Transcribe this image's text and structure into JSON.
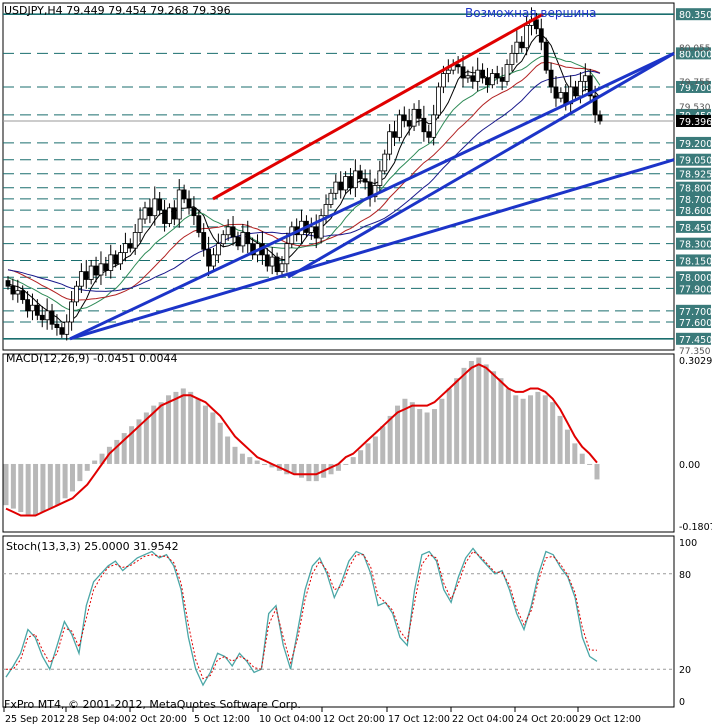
{
  "symbol_header": "USDJPY,H4  79.449 79.454 79.268 79.396",
  "annotation": "Возможная вершина",
  "copyright": "FxPro MT4, © 2001-2012, MetaQuotes Software Corp.",
  "colors": {
    "candle": "#000000",
    "grid": "#1a6e6e",
    "price_label_bg": "#3a7a7a",
    "trend_red": "#e00000",
    "trend_blue": "#1c34c8",
    "ma_fast": "#000000",
    "ma_medium": "#2e8b57",
    "ma_slow": "#b22222",
    "ma_long": "#1a1a8c",
    "macd_hist": "#b8b8b8",
    "macd_signal": "#e00000",
    "stoch_main": "#4aa6a6",
    "stoch_signal": "#e00000"
  },
  "chart_data": [
    {
      "type": "candlestick",
      "title": "USDJPY,H4",
      "ylim": [
        77.35,
        80.45
      ],
      "price_levels": [
        "80.350",
        "80.000",
        "79.700",
        "79.450",
        "79.200",
        "79.050",
        "78.925",
        "78.800",
        "78.700",
        "78.600",
        "78.450",
        "78.300",
        "78.150",
        "78.000",
        "77.900",
        "77.700",
        "77.600",
        "77.450"
      ],
      "price_level_values": [
        80.35,
        80.0,
        79.7,
        79.45,
        79.2,
        79.05,
        78.925,
        78.8,
        78.7,
        78.6,
        78.45,
        78.3,
        78.15,
        78.0,
        77.9,
        77.7,
        77.6,
        77.45
      ],
      "gray_ticks": [
        "80.055",
        "79.755",
        "79.530",
        "77.350"
      ],
      "gray_tick_values": [
        80.055,
        79.755,
        79.53,
        77.35
      ],
      "current_price": "79.396",
      "current_price_value": 79.396,
      "closes": [
        77.92,
        77.85,
        77.88,
        77.8,
        77.7,
        77.75,
        77.66,
        77.62,
        77.7,
        77.58,
        77.55,
        77.49,
        77.6,
        77.78,
        77.92,
        78.05,
        77.98,
        78.1,
        78.02,
        78.12,
        78.06,
        78.2,
        78.12,
        78.22,
        78.3,
        78.26,
        78.4,
        78.52,
        78.62,
        78.55,
        78.7,
        78.6,
        78.48,
        78.62,
        78.52,
        78.78,
        78.7,
        78.62,
        78.55,
        78.4,
        78.25,
        78.1,
        78.2,
        78.3,
        78.38,
        78.45,
        78.36,
        78.28,
        78.4,
        78.3,
        78.2,
        78.3,
        78.2,
        78.1,
        78.18,
        78.05,
        78.12,
        78.3,
        78.45,
        78.38,
        78.5,
        78.4,
        78.45,
        78.35,
        78.55,
        78.65,
        78.75,
        78.85,
        78.78,
        78.9,
        78.8,
        78.95,
        78.88,
        78.85,
        78.72,
        78.82,
        78.95,
        79.1,
        79.3,
        79.25,
        79.45,
        79.4,
        79.35,
        79.5,
        79.42,
        79.3,
        79.25,
        79.45,
        79.7,
        79.82,
        79.85,
        79.9,
        79.88,
        79.78,
        79.8,
        79.75,
        79.85,
        79.78,
        79.72,
        79.82,
        79.78,
        79.75,
        79.9,
        80.0,
        80.1,
        80.05,
        80.25,
        80.3,
        80.22,
        80.1,
        79.85,
        79.7,
        79.6,
        79.65,
        79.55,
        79.7,
        79.62,
        79.75,
        79.8,
        79.62,
        79.45,
        79.396
      ],
      "x_labels": [
        "25 Sep 2012",
        "28 Sep 04:00",
        "2 Oct 20:00",
        "5 Oct 12:00",
        "10 Oct 04:00",
        "12 Oct 20:00",
        "17 Oct 12:00",
        "22 Oct 04:00",
        "24 Oct 20:00",
        "29 Oct 12:00"
      ],
      "trendlines": [
        {
          "color": "red",
          "from": [
            "4 Oct",
            78.7
          ],
          "to": [
            "26 Oct",
            80.35
          ]
        },
        {
          "color": "blue",
          "from": [
            "28 Sep",
            77.45
          ],
          "to": [
            "30 Oct",
            80.0
          ]
        },
        {
          "color": "blue",
          "from": [
            "11 Oct",
            78.0
          ],
          "to": [
            "31 Oct",
            80.0
          ]
        },
        {
          "color": "blue",
          "from": [
            "28 Sep",
            77.45
          ],
          "to": [
            "31 Oct",
            79.05
          ]
        }
      ]
    },
    {
      "type": "bar",
      "title": "MACD(12,26,9) -0.0451 0.0044",
      "ylim": [
        -0.1807,
        0.3029
      ],
      "y_ticks": [
        "0.3029",
        "0.00",
        "-0.1807"
      ],
      "y_tick_values": [
        0.3029,
        0.0,
        -0.1807
      ],
      "histogram": [
        -0.12,
        -0.13,
        -0.14,
        -0.15,
        -0.15,
        -0.14,
        -0.13,
        -0.12,
        -0.1,
        -0.08,
        -0.05,
        -0.02,
        0.01,
        0.03,
        0.05,
        0.07,
        0.09,
        0.11,
        0.13,
        0.15,
        0.17,
        0.18,
        0.2,
        0.21,
        0.22,
        0.21,
        0.19,
        0.17,
        0.15,
        0.12,
        0.08,
        0.05,
        0.03,
        0.02,
        0.01,
        0.0,
        -0.01,
        -0.02,
        -0.03,
        -0.03,
        -0.04,
        -0.05,
        -0.05,
        -0.04,
        -0.03,
        -0.02,
        0.0,
        0.02,
        0.04,
        0.06,
        0.08,
        0.11,
        0.14,
        0.17,
        0.19,
        0.18,
        0.16,
        0.15,
        0.16,
        0.19,
        0.22,
        0.25,
        0.28,
        0.3,
        0.31,
        0.29,
        0.27,
        0.25,
        0.22,
        0.2,
        0.19,
        0.2,
        0.21,
        0.2,
        0.18,
        0.14,
        0.1,
        0.06,
        0.03,
        0.0,
        -0.045
      ],
      "signal": [
        -0.13,
        -0.14,
        -0.15,
        -0.15,
        -0.15,
        -0.14,
        -0.13,
        -0.12,
        -0.11,
        -0.1,
        -0.08,
        -0.06,
        -0.03,
        0.0,
        0.03,
        0.05,
        0.07,
        0.09,
        0.11,
        0.13,
        0.15,
        0.17,
        0.18,
        0.19,
        0.2,
        0.2,
        0.19,
        0.18,
        0.16,
        0.14,
        0.11,
        0.08,
        0.06,
        0.04,
        0.02,
        0.01,
        0.0,
        -0.01,
        -0.02,
        -0.03,
        -0.03,
        -0.03,
        -0.03,
        -0.02,
        -0.01,
        0.0,
        0.02,
        0.03,
        0.05,
        0.07,
        0.09,
        0.11,
        0.13,
        0.15,
        0.16,
        0.17,
        0.17,
        0.17,
        0.18,
        0.2,
        0.22,
        0.24,
        0.26,
        0.28,
        0.29,
        0.28,
        0.26,
        0.24,
        0.22,
        0.21,
        0.21,
        0.22,
        0.22,
        0.21,
        0.19,
        0.16,
        0.12,
        0.08,
        0.05,
        0.03,
        0.004
      ]
    },
    {
      "type": "line",
      "title": "Stoch(13,3,3) 25.0000 31.9542",
      "ylim": [
        0,
        100
      ],
      "y_ticks": [
        "100",
        "80",
        "20",
        "0"
      ],
      "y_tick_values": [
        100,
        80,
        20,
        0
      ],
      "series": [
        {
          "values": [
            15,
            22,
            30,
            45,
            40,
            28,
            20,
            35,
            50,
            42,
            30,
            60,
            75,
            80,
            85,
            88,
            82,
            86,
            90,
            92,
            94,
            90,
            92,
            85,
            70,
            40,
            20,
            10,
            18,
            30,
            28,
            22,
            30,
            25,
            18,
            20,
            55,
            60,
            35,
            20,
            45,
            70,
            85,
            90,
            80,
            65,
            75,
            88,
            94,
            92,
            80,
            60,
            62,
            55,
            40,
            35,
            70,
            92,
            94,
            88,
            70,
            62,
            78,
            90,
            96,
            90,
            85,
            80,
            82,
            70,
            55,
            45,
            60,
            80,
            94,
            92,
            84,
            78,
            65,
            40,
            28,
            25
          ]
        },
        {
          "values": [
            20,
            20,
            26,
            40,
            42,
            32,
            24,
            30,
            46,
            44,
            34,
            52,
            70,
            78,
            84,
            86,
            84,
            85,
            88,
            91,
            92,
            91,
            91,
            87,
            74,
            48,
            26,
            14,
            16,
            26,
            28,
            25,
            28,
            26,
            21,
            20,
            48,
            58,
            40,
            24,
            40,
            64,
            80,
            88,
            82,
            70,
            72,
            84,
            92,
            92,
            84,
            66,
            62,
            57,
            44,
            38,
            62,
            86,
            92,
            90,
            74,
            64,
            74,
            87,
            94,
            91,
            86,
            81,
            81,
            73,
            58,
            48,
            57,
            76,
            90,
            91,
            86,
            79,
            68,
            46,
            32,
            31.95
          ]
        }
      ]
    }
  ]
}
